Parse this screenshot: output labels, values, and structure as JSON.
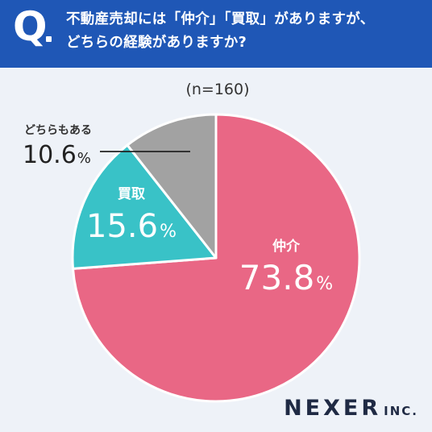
{
  "header": {
    "q_mark": "Q",
    "question_line1": "不動産売却には「仲介」「買取」がありますが、",
    "question_line2": "どちらの経験がありますか?"
  },
  "sample_label": "(n=160)",
  "brand": {
    "name": "NEXER",
    "suffix": "INC."
  },
  "colors": {
    "header_bg": "#1f57b6",
    "background": "#eef2f8"
  },
  "chart_data": {
    "type": "pie",
    "title": "",
    "categories": [
      "仲介",
      "買取",
      "どちらもある"
    ],
    "values": [
      73.8,
      15.6,
      10.6
    ],
    "unit": "%",
    "colors": [
      "#e96785",
      "#39c2c7",
      "#a2a2a2"
    ],
    "start": "12 o'clock",
    "direction": "clockwise",
    "labels": [
      {
        "name": "仲介",
        "value": "73.8",
        "unit": "%",
        "placement": "inside"
      },
      {
        "name": "買取",
        "value": "15.6",
        "unit": "%",
        "placement": "inside"
      },
      {
        "name": "どちらもある",
        "value": "10.6",
        "unit": "%",
        "placement": "outside-left with leader line"
      }
    ]
  }
}
